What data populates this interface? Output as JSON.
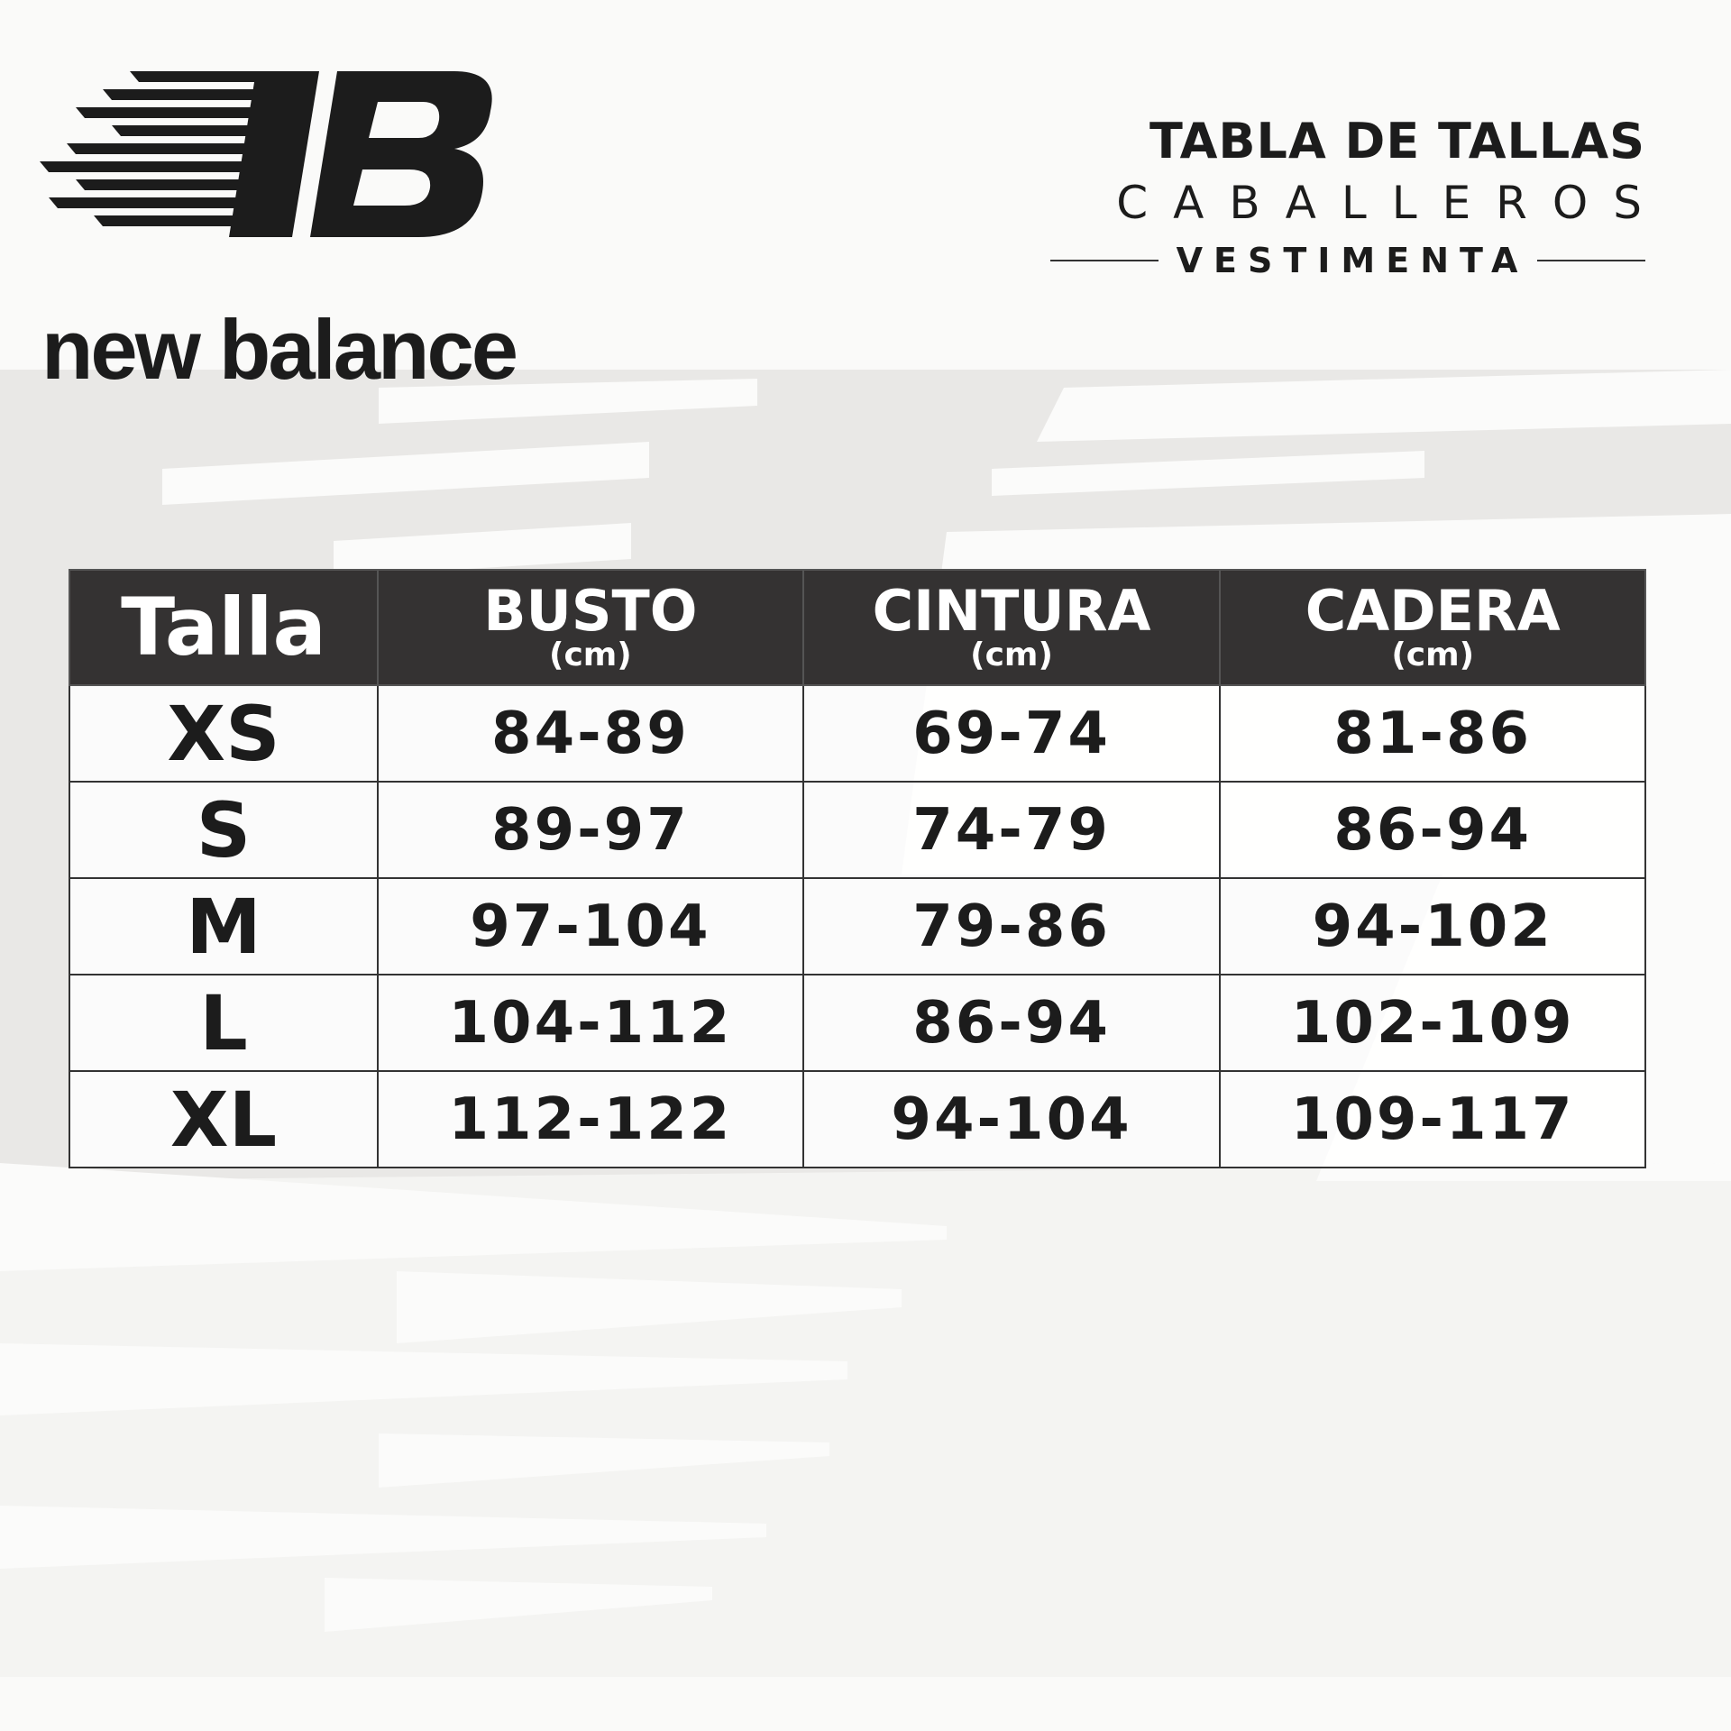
{
  "brand": {
    "name": "new balance",
    "monogram": "NB"
  },
  "title": {
    "line1": "TABLA DE TALLAS",
    "line2": "CABALLEROS",
    "line3": "VESTIMENTA"
  },
  "table": {
    "headers": [
      {
        "label": "Talla",
        "unit": ""
      },
      {
        "label": "BUSTO",
        "unit": "(cm)"
      },
      {
        "label": "CINTURA",
        "unit": "(cm)"
      },
      {
        "label": "CADERA",
        "unit": "(cm)"
      }
    ],
    "rows": [
      [
        "XS",
        "84-89",
        "69-74",
        "81-86"
      ],
      [
        "S",
        "89-97",
        "74-79",
        "86-94"
      ],
      [
        "M",
        "97-104",
        "79-86",
        "94-102"
      ],
      [
        "L",
        "104-112",
        "86-94",
        "102-109"
      ],
      [
        "XL",
        "112-122",
        "94-104",
        "109-117"
      ]
    ]
  },
  "colors": {
    "header_bg": "#343232",
    "background": "#e9e8e6"
  }
}
